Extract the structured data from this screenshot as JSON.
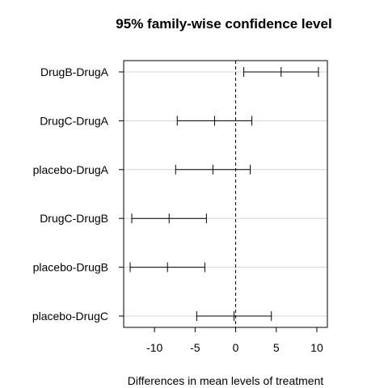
{
  "chart_data": {
    "type": "interval",
    "title": "95% family-wise confidence level",
    "xlabel": "Differences in mean levels of treatment",
    "ylabel": "",
    "xlim": [
      -13.8,
      11.3
    ],
    "x_ticks": [
      -10,
      -5,
      0,
      5,
      10
    ],
    "reference_line_x": 0,
    "grid": "horizontal",
    "comparisons": [
      {
        "label": "DrugB-DrugA",
        "lower": 1.0,
        "estimate": 5.6,
        "upper": 10.2
      },
      {
        "label": "DrugC-DrugA",
        "lower": -7.2,
        "estimate": -2.6,
        "upper": 2.0
      },
      {
        "label": "placebo-DrugA",
        "lower": -7.4,
        "estimate": -2.8,
        "upper": 1.8
      },
      {
        "label": "DrugC-DrugB",
        "lower": -12.8,
        "estimate": -8.2,
        "upper": -3.6
      },
      {
        "label": "placebo-DrugB",
        "lower": -13.0,
        "estimate": -8.4,
        "upper": -3.8
      },
      {
        "label": "placebo-DrugC",
        "lower": -4.8,
        "estimate": -0.2,
        "upper": 4.4
      }
    ]
  }
}
